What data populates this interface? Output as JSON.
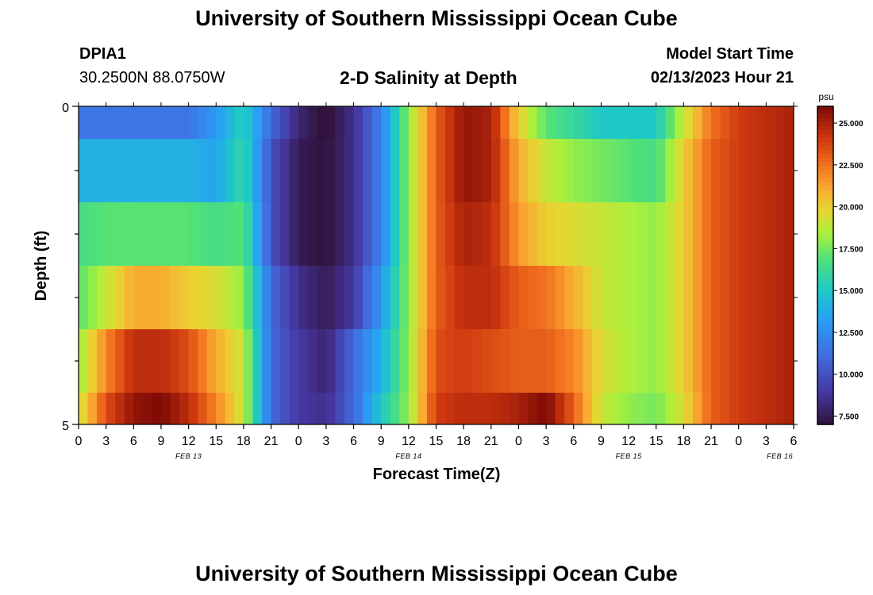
{
  "header": {
    "title": "University of Southern Mississippi Ocean Cube",
    "station_id": "DPIA1",
    "station_coords": "30.2500N  88.0750W",
    "plot_title": "2-D Salinity at Depth",
    "model_start_label": "Model Start Time",
    "model_start_value": "02/13/2023 Hour 21"
  },
  "footer": {
    "title": "University of Southern Mississippi Ocean Cube"
  },
  "chart_data": {
    "type": "heatmap",
    "title": "2-D Salinity at Depth",
    "xlabel": "Forecast Time(Z)",
    "ylabel": "Depth (ft)",
    "y_tick_labels": [
      "0",
      "5"
    ],
    "ylim": [
      0,
      5
    ],
    "x_tick_labels": [
      "0",
      "3",
      "6",
      "9",
      "12",
      "15",
      "18",
      "21",
      "0",
      "3",
      "6",
      "9",
      "12",
      "15",
      "18",
      "21",
      "0",
      "3",
      "6",
      "9",
      "12",
      "15",
      "18",
      "21",
      "0",
      "3",
      "6"
    ],
    "x_day_labels": [
      "FEB 13",
      "FEB 14",
      "FEB 15",
      "FEB 16"
    ],
    "colorbar": {
      "unit": "psu",
      "range": [
        7.0,
        26.0
      ],
      "tick_labels": [
        "7.500",
        "10.000",
        "12.500",
        "15.000",
        "17.500",
        "20.000",
        "22.500",
        "25.000"
      ],
      "tick_values": [
        7.5,
        10.0,
        12.5,
        15.0,
        17.5,
        20.0,
        22.5,
        25.0
      ]
    },
    "time_hours": [
      0,
      3,
      6,
      9,
      12,
      15,
      18,
      21,
      24,
      27,
      30,
      33,
      36,
      39,
      42,
      45,
      48,
      51,
      54,
      57,
      60,
      63,
      66,
      69,
      72,
      75,
      78
    ],
    "depth_layers": [
      {
        "name": "0.0-0.5 ft",
        "values": [
          11.5,
          11.5,
          11.5,
          11.5,
          11.5,
          13,
          15.5,
          11,
          8,
          6.8,
          8.5,
          12,
          18,
          23,
          25.5,
          25,
          20,
          17,
          16,
          15,
          15,
          15,
          19,
          22.5,
          24,
          24.5,
          25
        ]
      },
      {
        "name": "0.5-1.5 ft",
        "values": [
          14,
          14,
          14,
          14,
          14,
          13.5,
          16,
          10,
          7.5,
          7,
          8.5,
          12,
          18,
          23,
          25.5,
          25,
          21,
          19,
          18,
          17.5,
          17,
          16.5,
          20,
          23,
          24,
          24.5,
          25
        ]
      },
      {
        "name": "1.5-2.5 ft",
        "values": [
          16.5,
          17,
          17,
          17,
          17,
          16.5,
          17,
          10,
          7.5,
          7,
          8.5,
          12,
          18,
          23,
          25,
          24.5,
          21.5,
          20,
          19.5,
          19,
          18.5,
          18,
          20,
          23,
          24,
          24.5,
          25
        ]
      },
      {
        "name": "2.5-3.5 ft",
        "values": [
          17,
          19,
          21,
          21,
          20,
          19.5,
          18,
          11,
          8.5,
          7.5,
          9,
          13,
          18,
          23,
          24.5,
          24.5,
          23,
          22.5,
          21,
          19,
          18.5,
          18,
          20,
          23,
          24,
          24.5,
          25
        ]
      },
      {
        "name": "3.5-4.5 ft",
        "values": [
          18,
          22,
          24.5,
          24.5,
          23.5,
          21,
          19,
          11,
          9,
          8,
          11,
          14,
          18,
          23.5,
          24,
          23.5,
          23,
          23,
          22,
          19.5,
          18.5,
          18,
          20,
          23,
          24,
          24.5,
          25
        ]
      },
      {
        "name": "4.5-5.0 ft",
        "values": [
          19,
          23.5,
          25.5,
          26,
          24.5,
          22,
          19,
          11,
          9,
          8.5,
          11,
          15,
          18,
          24,
          24.5,
          24.5,
          25,
          26,
          23,
          19,
          18,
          17.5,
          19.5,
          23,
          24,
          24.5,
          25
        ]
      }
    ]
  }
}
